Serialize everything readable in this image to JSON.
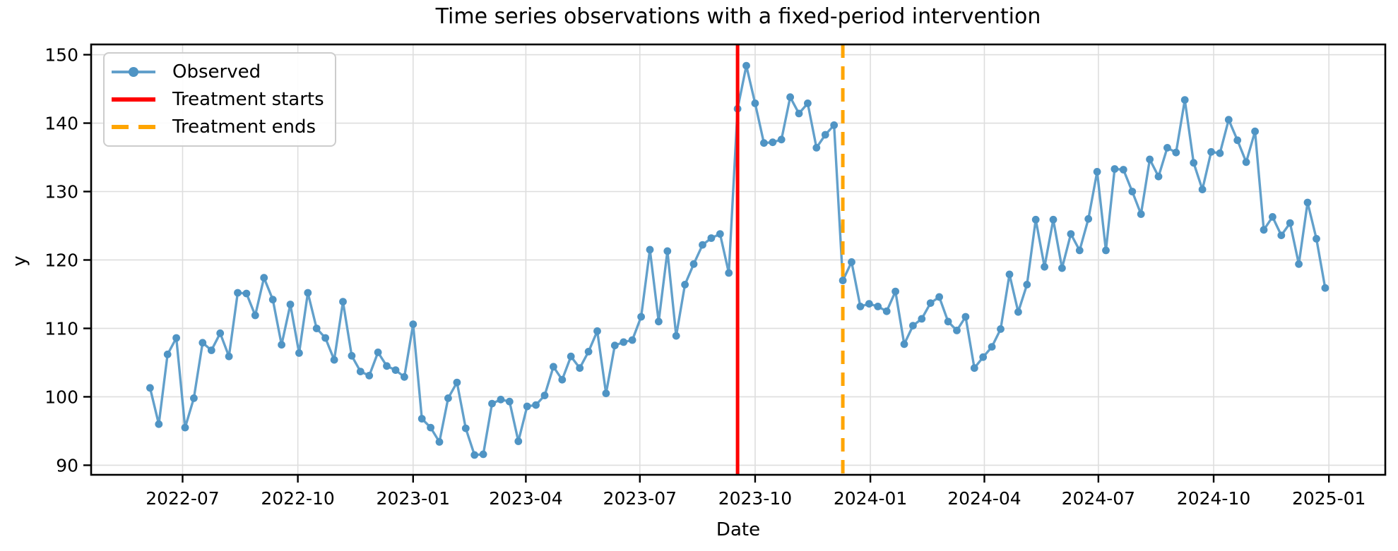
{
  "title": "Time series observations with a fixed-period intervention",
  "legend": {
    "items": [
      {
        "label": "Observed"
      },
      {
        "label": "Treatment starts"
      },
      {
        "label": "Treatment ends"
      }
    ]
  },
  "chart_data": {
    "type": "line",
    "title": "Time series observations with a fixed-period intervention",
    "xlabel": "Date",
    "ylabel": "y",
    "grid": true,
    "legend_position": "upper left",
    "series_name": "Observed",
    "x_start_date": "2022-06-05",
    "x_step_days": 7,
    "values": [
      101.3,
      96.0,
      106.2,
      108.6,
      95.5,
      99.8,
      107.9,
      106.8,
      109.3,
      105.9,
      115.2,
      115.1,
      111.9,
      117.4,
      114.2,
      107.6,
      113.5,
      106.4,
      115.2,
      110.0,
      108.6,
      105.4,
      113.9,
      106.0,
      103.7,
      103.1,
      106.5,
      104.5,
      103.9,
      102.9,
      110.6,
      96.8,
      95.5,
      93.4,
      99.8,
      102.1,
      95.4,
      91.5,
      91.6,
      99.0,
      99.6,
      99.3,
      93.5,
      98.6,
      98.8,
      100.2,
      104.4,
      102.5,
      105.9,
      104.2,
      106.6,
      109.6,
      100.5,
      107.5,
      108.0,
      108.3,
      111.7,
      121.5,
      111.0,
      121.3,
      108.9,
      116.4,
      119.4,
      122.2,
      123.2,
      123.8,
      118.1,
      142.1,
      148.4,
      142.9,
      137.1,
      137.2,
      137.6,
      143.8,
      141.4,
      142.9,
      136.4,
      138.3,
      139.7,
      117.0,
      119.7,
      113.2,
      113.6,
      113.2,
      112.5,
      115.4,
      107.7,
      110.4,
      111.4,
      113.7,
      114.6,
      111.0,
      109.7,
      111.7,
      104.2,
      105.8,
      107.3,
      109.9,
      117.9,
      112.4,
      116.4,
      125.9,
      119.0,
      125.9,
      118.8,
      123.8,
      121.4,
      126.0,
      132.9,
      121.4,
      133.3,
      133.2,
      130.0,
      126.7,
      134.7,
      132.2,
      136.4,
      135.7,
      143.4,
      134.2,
      130.3,
      135.8,
      135.6,
      140.5,
      137.5,
      134.3,
      138.8,
      124.4,
      126.3,
      123.6,
      125.4,
      119.4,
      128.4,
      123.1,
      115.9
    ],
    "xlim": [
      "2022-04-19",
      "2025-02-15"
    ],
    "ylim": [
      88.6,
      151.5
    ],
    "yticks": [
      90,
      100,
      110,
      120,
      130,
      140,
      150
    ],
    "xticks": [
      {
        "date": "2022-07-01",
        "label": "2022-07"
      },
      {
        "date": "2022-10-01",
        "label": "2022-10"
      },
      {
        "date": "2023-01-01",
        "label": "2023-01"
      },
      {
        "date": "2023-04-01",
        "label": "2023-04"
      },
      {
        "date": "2023-07-01",
        "label": "2023-07"
      },
      {
        "date": "2023-10-01",
        "label": "2023-10"
      },
      {
        "date": "2024-01-01",
        "label": "2024-01"
      },
      {
        "date": "2024-04-01",
        "label": "2024-04"
      },
      {
        "date": "2024-07-01",
        "label": "2024-07"
      },
      {
        "date": "2024-10-01",
        "label": "2024-10"
      },
      {
        "date": "2025-01-01",
        "label": "2025-01"
      }
    ],
    "vlines": [
      {
        "name": "Treatment starts",
        "date": "2023-09-17",
        "color": "#ff0000",
        "style": "solid"
      },
      {
        "name": "Treatment ends",
        "date": "2023-12-10",
        "color": "#ffa500",
        "style": "dashed"
      }
    ],
    "colors": {
      "observed_line": "#62a0cb",
      "observed_marker": "#4f94c4",
      "treatment_start": "#ff0000",
      "treatment_end": "#ffa500",
      "grid": "#dedede",
      "axis": "#000000"
    }
  }
}
